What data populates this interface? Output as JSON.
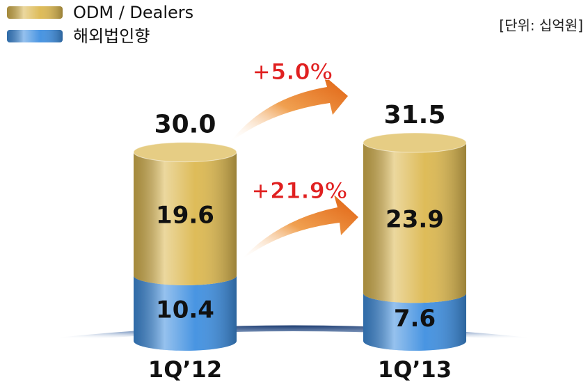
{
  "chart_data": {
    "type": "bar",
    "stacked": true,
    "unit": "[단위: 십억원]",
    "categories": [
      "1Q’12",
      "1Q’13"
    ],
    "series": [
      {
        "name": "해외법인향",
        "color": "#3f8fe0",
        "values": [
          10.4,
          7.6
        ]
      },
      {
        "name": "ODM / Dealers",
        "color": "#dcb850",
        "values": [
          19.6,
          23.9
        ]
      }
    ],
    "totals": [
      30.0,
      31.5
    ],
    "total_labels": [
      "30.0",
      "31.5"
    ],
    "annotations": [
      "+5.0%",
      "+21.9%"
    ],
    "legend": "top-left"
  }
}
